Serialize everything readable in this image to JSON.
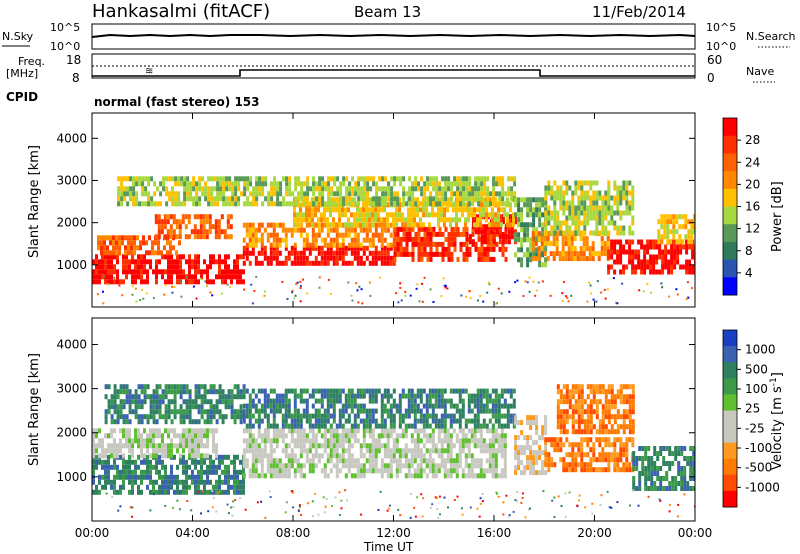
{
  "header": {
    "station": "Hankasalmi (fitACF)",
    "beam": "Beam 13",
    "date": "11/Feb/2014"
  },
  "panels": {
    "nsky": {
      "left_label": "N.Sky",
      "right_label": "N.Search",
      "left_ticks": [
        "10^5",
        "10^0"
      ],
      "right_ticks": [
        "10^5",
        "10^0"
      ]
    },
    "freq": {
      "label_line1": "Freq.",
      "label_line2": "[MHz]",
      "right_label": "Nave",
      "left_ticks": [
        "18",
        "8"
      ],
      "right_ticks": [
        "60",
        "0"
      ]
    },
    "cpid": {
      "label": "CPID",
      "text": "normal (fast stereo) 153"
    }
  },
  "axes": {
    "ylabel": "Slant Range [km]",
    "yticks": [
      "4000",
      "3000",
      "2000",
      "1000"
    ],
    "xticks": [
      "00:00",
      "04:00",
      "08:00",
      "12:00",
      "16:00",
      "20:00",
      "00:00"
    ],
    "xlabel": "Time UT"
  },
  "colorbars": {
    "power": {
      "title": "Power [dB]",
      "labels": [
        "28",
        "24",
        "20",
        "16",
        "12",
        "8",
        "4"
      ],
      "colors": [
        "#ff0000",
        "#ff3000",
        "#ff6000",
        "#ff8800",
        "#ffc000",
        "#a8d840",
        "#5a9a58",
        "#2e7a5a",
        "#2a52b0",
        "#0000ff"
      ]
    },
    "velocity": {
      "title": "Velocity [m s",
      "title_sup": "-1",
      "title_end": "]",
      "labels": [
        "1000",
        "500",
        "100",
        "25",
        "-25",
        "-100",
        "-500",
        "-1000"
      ],
      "colors": [
        "#1840c0",
        "#3a62b0",
        "#2e8060",
        "#3a9a4a",
        "#60c030",
        "#c8c8c0",
        "#c8c8c0",
        "#ff9a20",
        "#ff7a00",
        "#ff4a00",
        "#ff0000"
      ]
    }
  },
  "chart_data": [
    {
      "type": "heatmap",
      "name": "power",
      "ylim": [
        0,
        4600
      ],
      "xlim": [
        0,
        24
      ],
      "bands": [
        {
          "x0": 0,
          "x1": 6,
          "y0": 600,
          "y1": 1250,
          "level": 9
        },
        {
          "x0": 0.2,
          "x1": 3.5,
          "y0": 1250,
          "y1": 1700,
          "level": 7
        },
        {
          "x0": 2.5,
          "x1": 5.5,
          "y0": 1700,
          "y1": 2200,
          "level": 7
        },
        {
          "x0": 6,
          "x1": 12,
          "y0": 1050,
          "y1": 1450,
          "level": 9
        },
        {
          "x0": 6,
          "x1": 12,
          "y0": 1450,
          "y1": 2000,
          "level": 6
        },
        {
          "x0": 12,
          "x1": 16.5,
          "y0": 1150,
          "y1": 1900,
          "level": 8
        },
        {
          "x0": 15,
          "x1": 16.8,
          "y0": 1500,
          "y1": 2200,
          "level": 9
        },
        {
          "x0": 8,
          "x1": 16.8,
          "y0": 2000,
          "y1": 2600,
          "level": 5
        },
        {
          "x0": 1,
          "x1": 16.8,
          "y0": 2500,
          "y1": 3100,
          "level": 4
        },
        {
          "x0": 16.8,
          "x1": 18,
          "y0": 1000,
          "y1": 2600,
          "level": 3
        },
        {
          "x0": 17.5,
          "x1": 20.5,
          "y0": 1100,
          "y1": 1800,
          "level": 6
        },
        {
          "x0": 18,
          "x1": 21.5,
          "y0": 1800,
          "y1": 3000,
          "level": 4
        },
        {
          "x0": 20.5,
          "x1": 24,
          "y0": 800,
          "y1": 1600,
          "level": 9
        },
        {
          "x0": 22.5,
          "x1": 24,
          "y0": 1600,
          "y1": 2200,
          "level": 5
        }
      ]
    },
    {
      "type": "heatmap",
      "name": "velocity",
      "ylim": [
        0,
        4600
      ],
      "xlim": [
        0,
        24
      ],
      "bands": [
        {
          "x0": 0,
          "x1": 6,
          "y0": 600,
          "y1": 1500,
          "level": 8
        },
        {
          "x0": 0,
          "x1": 5,
          "y0": 1500,
          "y1": 2100,
          "level": 5
        },
        {
          "x0": 0.5,
          "x1": 6,
          "y0": 2200,
          "y1": 3100,
          "level": 8
        },
        {
          "x0": 6,
          "x1": 16.5,
          "y0": 1050,
          "y1": 2100,
          "level": 5
        },
        {
          "x0": 6,
          "x1": 16.8,
          "y0": 2100,
          "y1": 3000,
          "level": 8
        },
        {
          "x0": 16.8,
          "x1": 18,
          "y0": 1100,
          "y1": 2400,
          "level": 4
        },
        {
          "x0": 18,
          "x1": 21.5,
          "y0": 1200,
          "y1": 1900,
          "level": 2
        },
        {
          "x0": 18.5,
          "x1": 21.5,
          "y0": 2000,
          "y1": 3100,
          "level": 2
        },
        {
          "x0": 21.5,
          "x1": 24,
          "y0": 700,
          "y1": 1700,
          "level": 8
        }
      ]
    }
  ]
}
